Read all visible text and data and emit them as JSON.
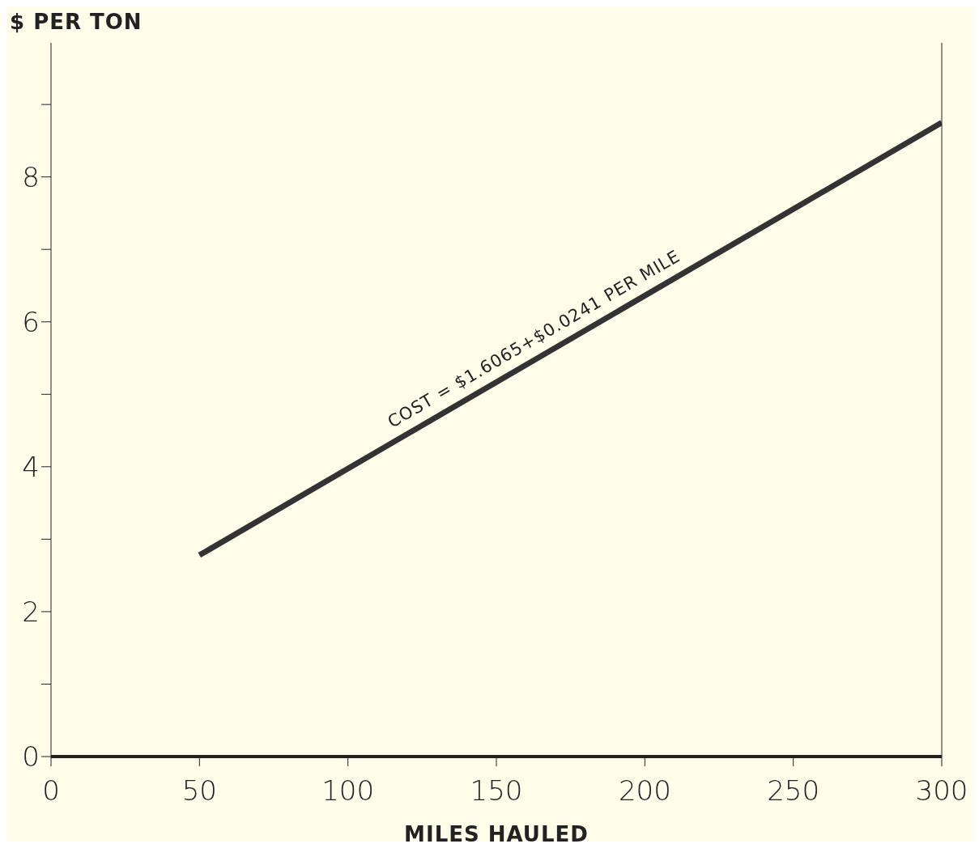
{
  "chart_data": {
    "type": "line",
    "ylabel": "$ PER TON",
    "xlabel": "MILES HAULED",
    "x": [
      50,
      300
    ],
    "series": [
      {
        "color": "#333333",
        "values": [
          2.78,
          8.75
        ]
      }
    ],
    "xlim": [
      0,
      300
    ],
    "xticks": [
      0,
      50,
      100,
      150,
      200,
      250,
      300
    ],
    "ylim": [
      0,
      9.85
    ],
    "yticks": [
      0,
      {
        "value": 1,
        "label": null
      },
      2,
      {
        "value": 3,
        "label": null
      },
      4,
      {
        "value": 5,
        "label": null
      },
      6,
      {
        "value": 7,
        "label": null
      },
      8,
      {
        "value": 9,
        "label": null
      }
    ],
    "annotations": [
      {
        "text": "COST = $1.6065+$0.0241 PER MILE",
        "x": 165,
        "y": 5.6
      }
    ],
    "marker": "none",
    "line_style": "solid",
    "grid": false,
    "legend": false
  }
}
